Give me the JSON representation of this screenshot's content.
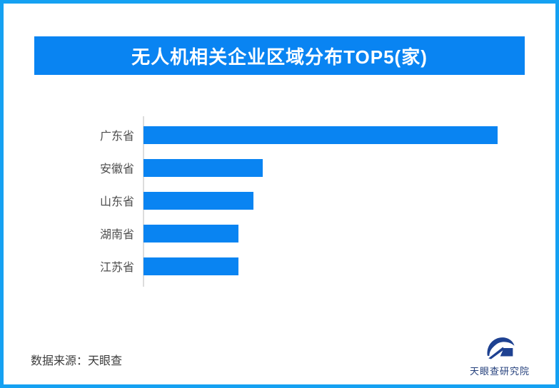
{
  "page": {
    "border_color": "#15a1f2",
    "background_color": "#ffffff"
  },
  "header": {
    "title": "无人机相关企业区域分布TOP5(家)",
    "banner_color": "#0984f2",
    "title_color": "#ffffff"
  },
  "chart_data": {
    "type": "bar",
    "orientation": "horizontal",
    "title": "无人机相关企业区域分布TOP5(家)",
    "categories": [
      "广东省",
      "安徽省",
      "山东省",
      "湖南省",
      "江苏省"
    ],
    "values_relative_pct": [
      100,
      33.7,
      31.0,
      26.8,
      26.8
    ],
    "value_labels_shown": false,
    "axis_tick_labels_shown": false,
    "gridlines": false,
    "legend": "none",
    "bar_color": "#0984f2",
    "axis_line_color": "#dcdcdc",
    "label_color": "#4d4d4d"
  },
  "footer": {
    "source_text": "数据来源：天眼查"
  },
  "logo": {
    "text": "天眼查研究院",
    "color": "#24407c",
    "icon": "tianyancha-eye-logo",
    "icon_color": "#1e4191"
  }
}
